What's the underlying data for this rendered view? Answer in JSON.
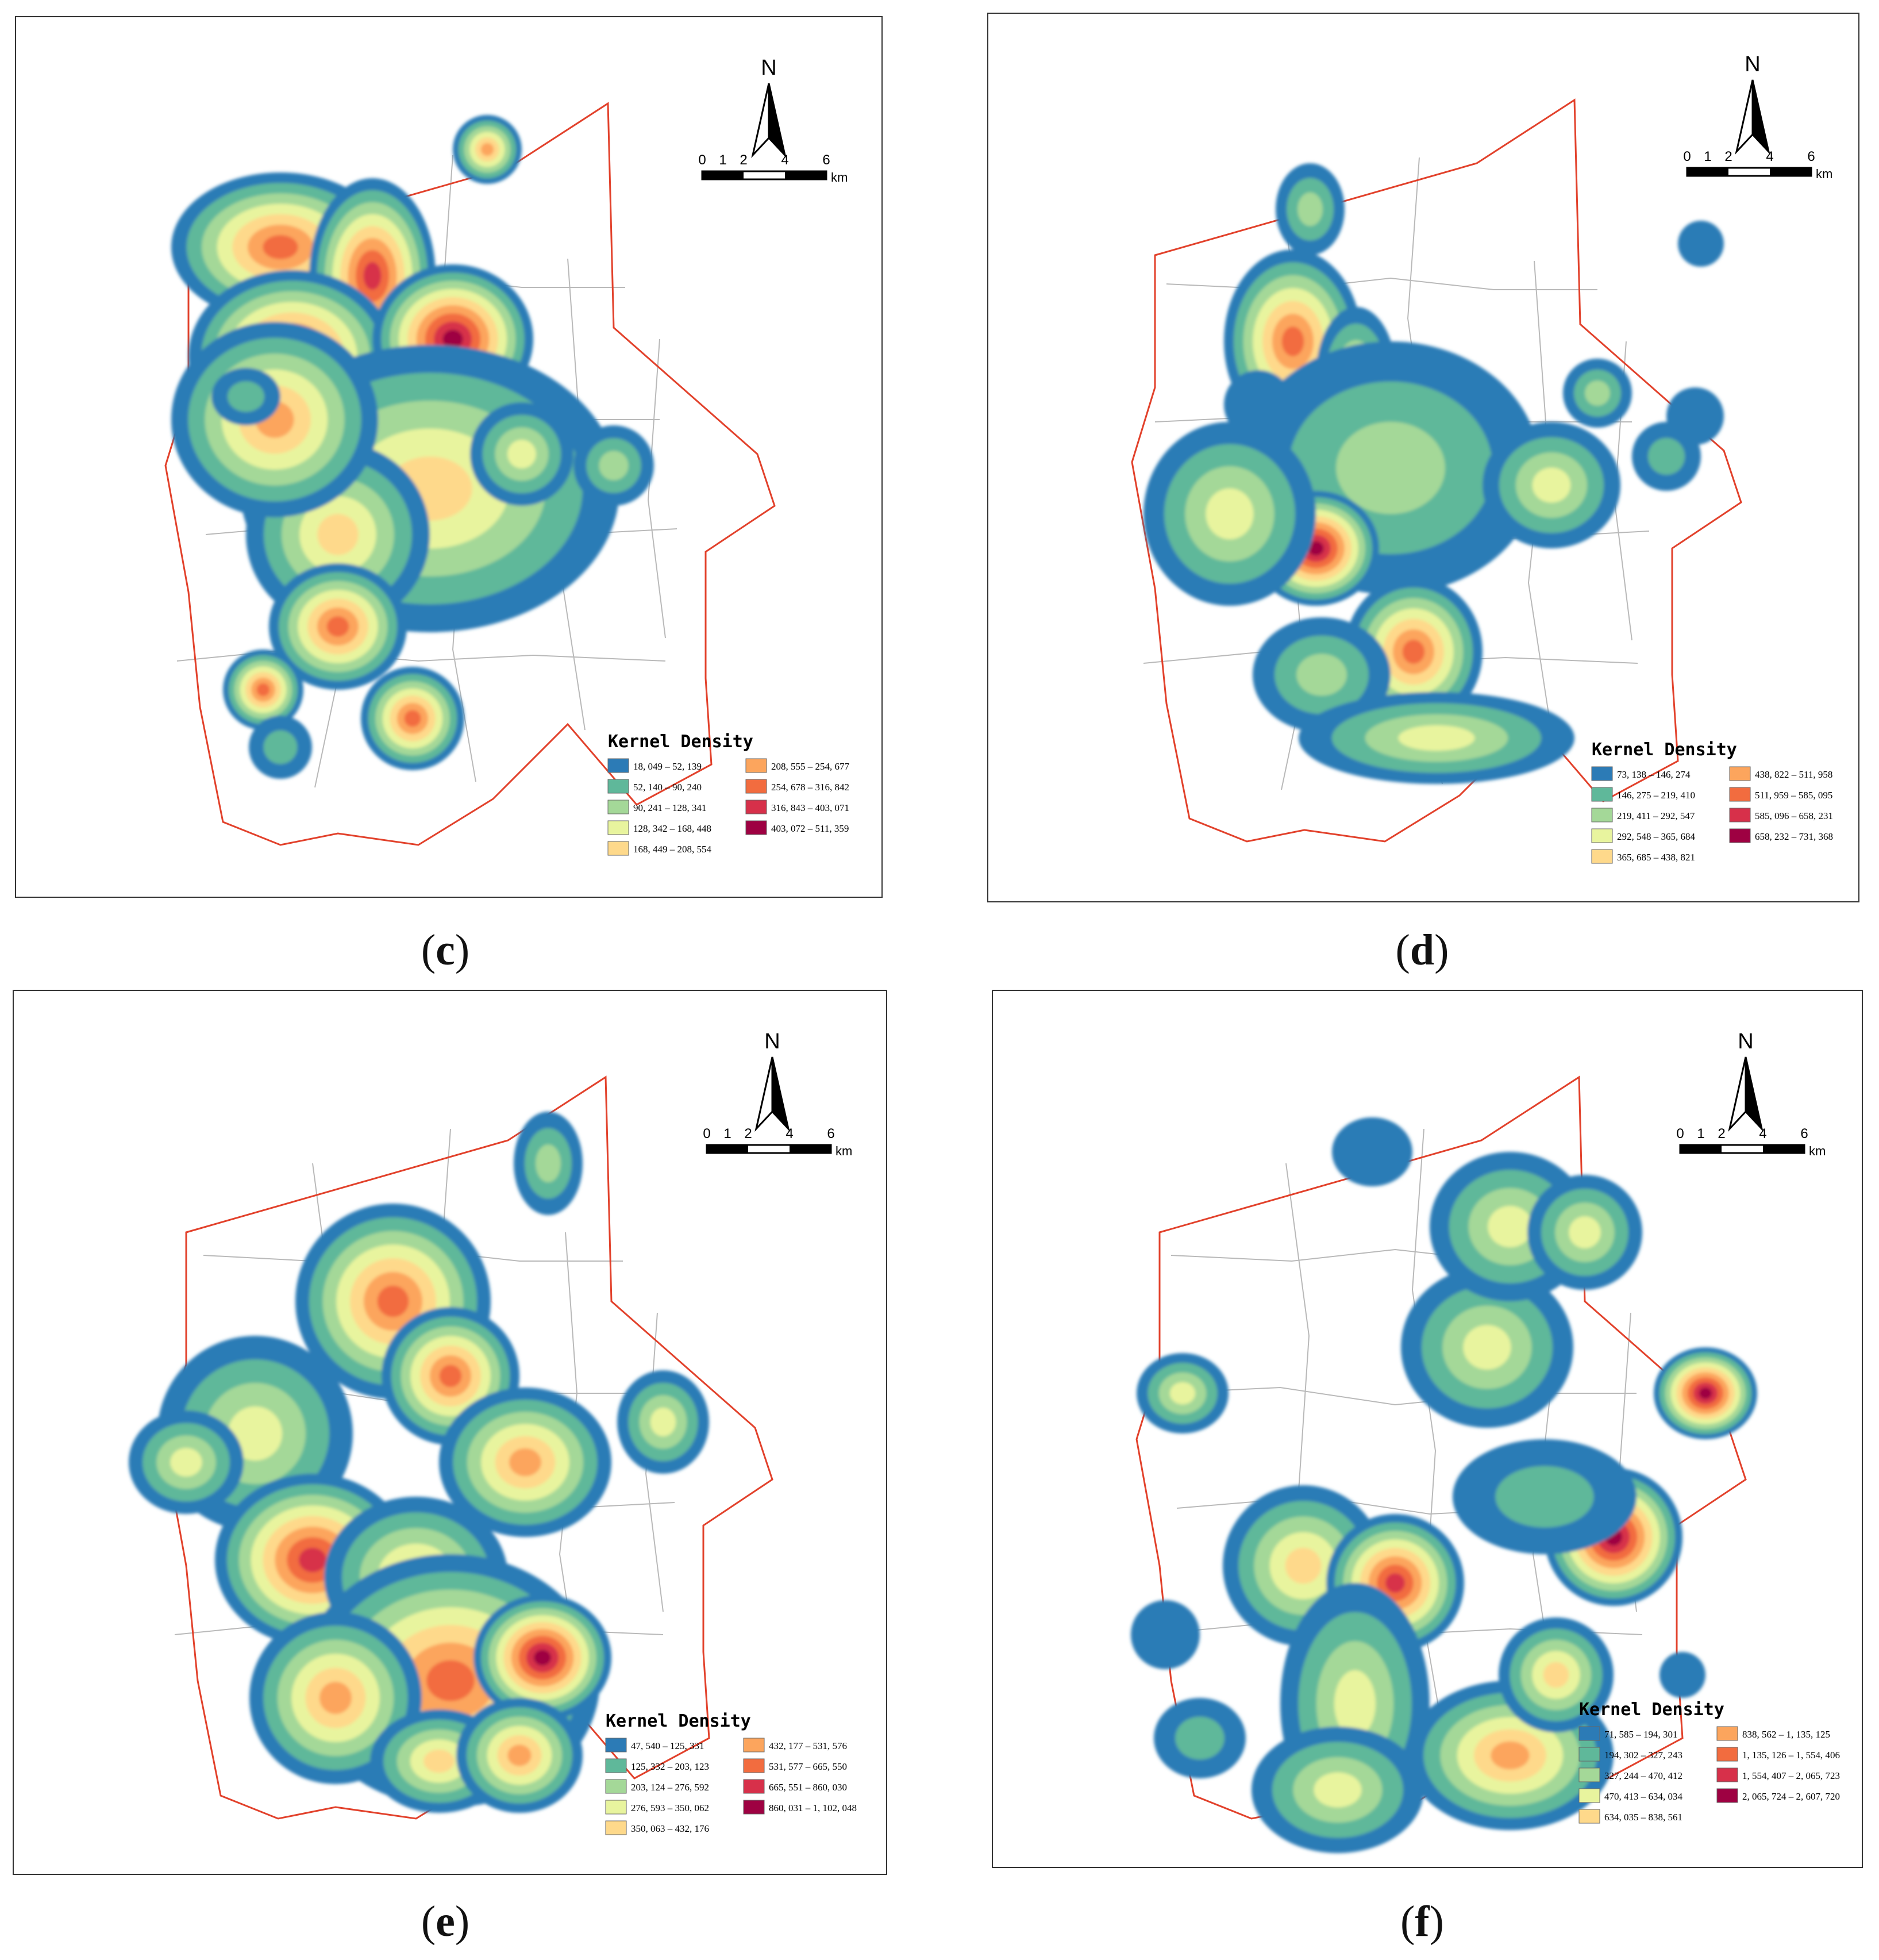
{
  "colors": {
    "ramp": [
      "#2c7bb6",
      "#5fb89a",
      "#a4d898",
      "#e8f49e",
      "#fed98b",
      "#fca55d",
      "#f26c3f",
      "#d7304a",
      "#9e0142"
    ],
    "boundary": "#e2412b",
    "district": "#b9b9b9"
  },
  "north_arrow": {
    "label": "N"
  },
  "scale_bar": {
    "ticks": [
      "0",
      "1",
      "2",
      "4",
      "6"
    ],
    "unit": "km"
  },
  "legend_title": "Kernel Density",
  "panels": [
    {
      "caption": "c",
      "legend": [
        "18, 049 – 52, 139",
        "52, 140 – 90, 240",
        "90, 241 – 128, 341",
        "128, 342 – 168, 448",
        "168, 449 – 208, 554",
        "208, 555 – 254, 677",
        "254, 678 – 316, 842",
        "316, 843 – 403, 071",
        "403, 072 – 511, 359"
      ]
    },
    {
      "caption": "d",
      "legend": [
        "73, 138 – 146, 274",
        "146, 275 – 219, 410",
        "219, 411 – 292, 547",
        "292, 548 – 365, 684",
        "365, 685 – 438, 821",
        "438, 822 – 511, 958",
        "511, 959 – 585, 095",
        "585, 096 – 658, 231",
        "658, 232 – 731, 368"
      ]
    },
    {
      "caption": "e",
      "legend": [
        "47, 540 – 125, 331",
        "125, 332 – 203, 123",
        "203, 124 – 276, 592",
        "276, 593 – 350, 062",
        "350, 063 – 432, 176",
        "432, 177 – 531, 576",
        "531, 577 – 665, 550",
        "665, 551 – 860, 030",
        "860, 031 – 1, 102, 048"
      ]
    },
    {
      "caption": "f",
      "legend": [
        "71, 585 – 194, 301",
        "194, 302 – 327, 243",
        "327, 244 – 470, 412",
        "470, 413 – 634, 034",
        "634, 035 – 838, 561",
        "838, 562 – 1, 135, 125",
        "1, 135, 126 – 1, 554, 406",
        "1, 554, 407 – 2, 065, 723",
        "2, 065, 724 – 2, 607, 720"
      ]
    }
  ]
}
